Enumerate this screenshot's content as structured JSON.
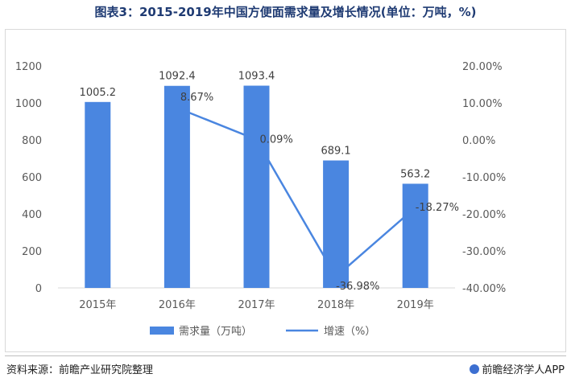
{
  "title": "图表3：2015-2019年中国方便面需求量及增长情况(单位：万吨，%)",
  "footer": {
    "source": "资料来源：前瞻产业研究院整理",
    "brand": "前瞻经济学人APP"
  },
  "colors": {
    "bar": "#4a86e0",
    "line": "#4a86e0",
    "axis_text": "#595959",
    "gridline": "#d9d9d9",
    "title": "#1f3b73"
  },
  "chart_data": {
    "type": "bar",
    "categories": [
      "2015年",
      "2016年",
      "2017年",
      "2018年",
      "2019年"
    ],
    "series": [
      {
        "name": "需求量（万吨）",
        "type": "bar",
        "axis": "left",
        "values": [
          1005.2,
          1092.4,
          1093.4,
          689.1,
          563.2
        ],
        "labels": [
          "1005.2",
          "1092.4",
          "1093.4",
          "689.1",
          "563.2"
        ]
      },
      {
        "name": "增速（%）",
        "type": "line",
        "axis": "right",
        "values": [
          null,
          8.67,
          0.09,
          -36.98,
          -18.27
        ],
        "labels": [
          "",
          "8.67%",
          "0.09%",
          "-36.98%",
          "-18.27%"
        ]
      }
    ],
    "y_left": {
      "ylim": [
        0,
        1200
      ],
      "ticks": [
        "0",
        "200",
        "400",
        "600",
        "800",
        "1000",
        "1200"
      ]
    },
    "y_right": {
      "ylim": [
        -40,
        20
      ],
      "ticks": [
        "-40.00%",
        "-30.00%",
        "-20.00%",
        "-10.00%",
        "0.00%",
        "10.00%",
        "20.00%"
      ]
    },
    "legend": [
      "需求量（万吨）",
      "增速（%）"
    ],
    "legend_position": "bottom",
    "grid": false
  }
}
